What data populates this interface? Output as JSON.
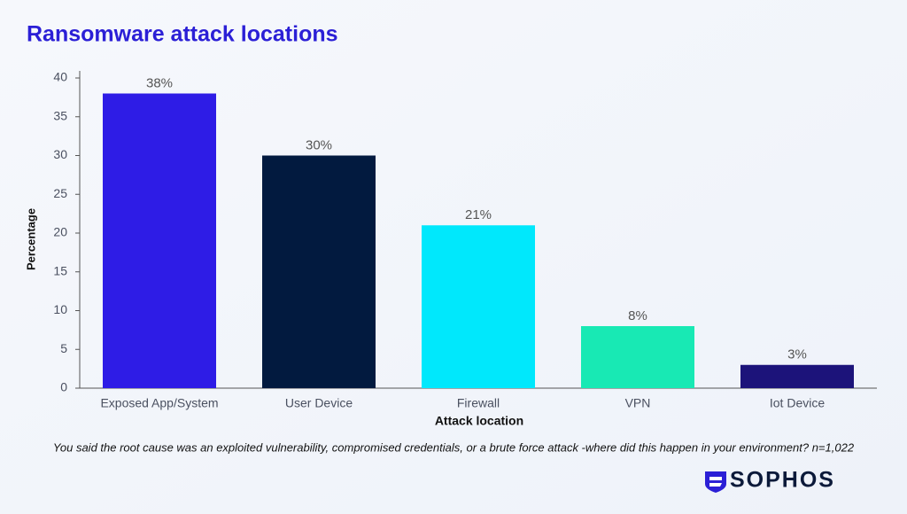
{
  "chart_data": {
    "type": "bar",
    "title": "Ransomware attack locations",
    "categories": [
      "Exposed App/System",
      "User Device",
      "Firewall",
      "VPN",
      "Iot Device"
    ],
    "values": [
      38,
      30,
      21,
      8,
      3
    ],
    "value_labels": [
      "38%",
      "30%",
      "21%",
      "8%",
      "3%"
    ],
    "colors": [
      "#2e1ce6",
      "#021a3f",
      "#00e8fc",
      "#18e9b4",
      "#1c137a"
    ],
    "xlabel": "Attack location",
    "ylabel": "Percentage",
    "ylim": [
      0,
      40
    ],
    "yticks": [
      0,
      5,
      10,
      15,
      20,
      25,
      30,
      35,
      40
    ],
    "grid": false,
    "footnote": "You said the root cause was an exploited vulnerability, compromised credentials, or a brute force attack -where did this happen in your environment? n=1,022"
  },
  "logo": "SOPHOS"
}
